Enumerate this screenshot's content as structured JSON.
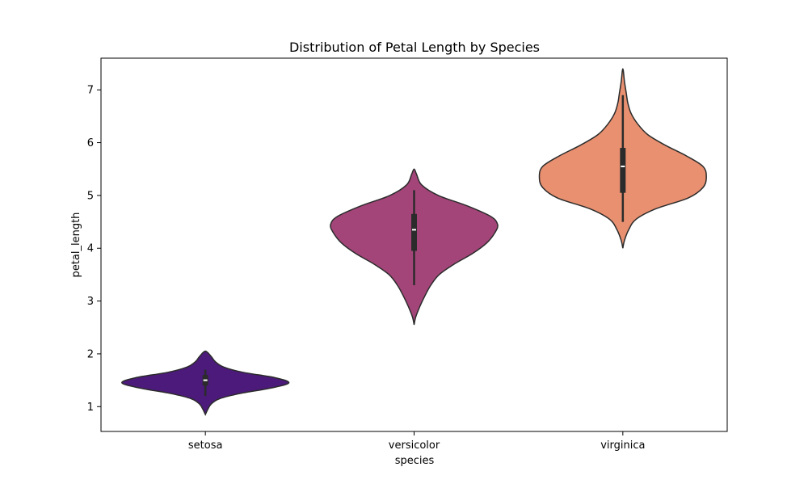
{
  "chart_data": {
    "type": "violin",
    "title": "Distribution of Petal Length by Species",
    "xlabel": "species",
    "ylabel": "petal_length",
    "ylim": [
      0.53,
      7.6
    ],
    "yticks": [
      1,
      2,
      3,
      4,
      5,
      6,
      7
    ],
    "ytick_labels": [
      "1",
      "2",
      "3",
      "4",
      "5",
      "6",
      "7"
    ],
    "grid": false,
    "legend": "none",
    "categories": [
      "setosa",
      "versicolor",
      "virginica"
    ],
    "series": [
      {
        "category": "setosa",
        "color": "#4b1a7a",
        "min": 1.2,
        "q1": 1.4,
        "median": 1.5,
        "q3": 1.6,
        "max": 1.7,
        "density": [
          [
            0.85,
            0.0
          ],
          [
            0.95,
            0.03
          ],
          [
            1.05,
            0.07
          ],
          [
            1.15,
            0.17
          ],
          [
            1.25,
            0.42
          ],
          [
            1.35,
            0.78
          ],
          [
            1.45,
            1.0
          ],
          [
            1.55,
            0.83
          ],
          [
            1.65,
            0.45
          ],
          [
            1.75,
            0.22
          ],
          [
            1.85,
            0.12
          ],
          [
            1.95,
            0.07
          ],
          [
            2.05,
            0.0
          ]
        ]
      },
      {
        "category": "versicolor",
        "color": "#a4457a",
        "min": 3.3,
        "q1": 3.95,
        "median": 4.35,
        "q3": 4.65,
        "max": 5.1,
        "density": [
          [
            2.55,
            0.0
          ],
          [
            2.7,
            0.02
          ],
          [
            2.9,
            0.07
          ],
          [
            3.1,
            0.13
          ],
          [
            3.3,
            0.2
          ],
          [
            3.5,
            0.3
          ],
          [
            3.7,
            0.48
          ],
          [
            3.9,
            0.7
          ],
          [
            4.1,
            0.87
          ],
          [
            4.3,
            0.97
          ],
          [
            4.45,
            1.0
          ],
          [
            4.6,
            0.92
          ],
          [
            4.8,
            0.64
          ],
          [
            5.0,
            0.29
          ],
          [
            5.2,
            0.09
          ],
          [
            5.4,
            0.03
          ],
          [
            5.5,
            0.0
          ]
        ]
      },
      {
        "category": "virginica",
        "color": "#e89070",
        "min": 4.5,
        "q1": 5.05,
        "median": 5.55,
        "q3": 5.9,
        "max": 6.9,
        "density": [
          [
            4.0,
            0.0
          ],
          [
            4.15,
            0.02
          ],
          [
            4.35,
            0.07
          ],
          [
            4.55,
            0.16
          ],
          [
            4.75,
            0.4
          ],
          [
            4.95,
            0.78
          ],
          [
            5.15,
            0.96
          ],
          [
            5.35,
            1.0
          ],
          [
            5.55,
            0.96
          ],
          [
            5.75,
            0.76
          ],
          [
            5.95,
            0.51
          ],
          [
            6.15,
            0.3
          ],
          [
            6.35,
            0.18
          ],
          [
            6.55,
            0.1
          ],
          [
            6.75,
            0.06
          ],
          [
            6.95,
            0.04
          ],
          [
            7.15,
            0.02
          ],
          [
            7.4,
            0.0
          ]
        ]
      }
    ]
  }
}
